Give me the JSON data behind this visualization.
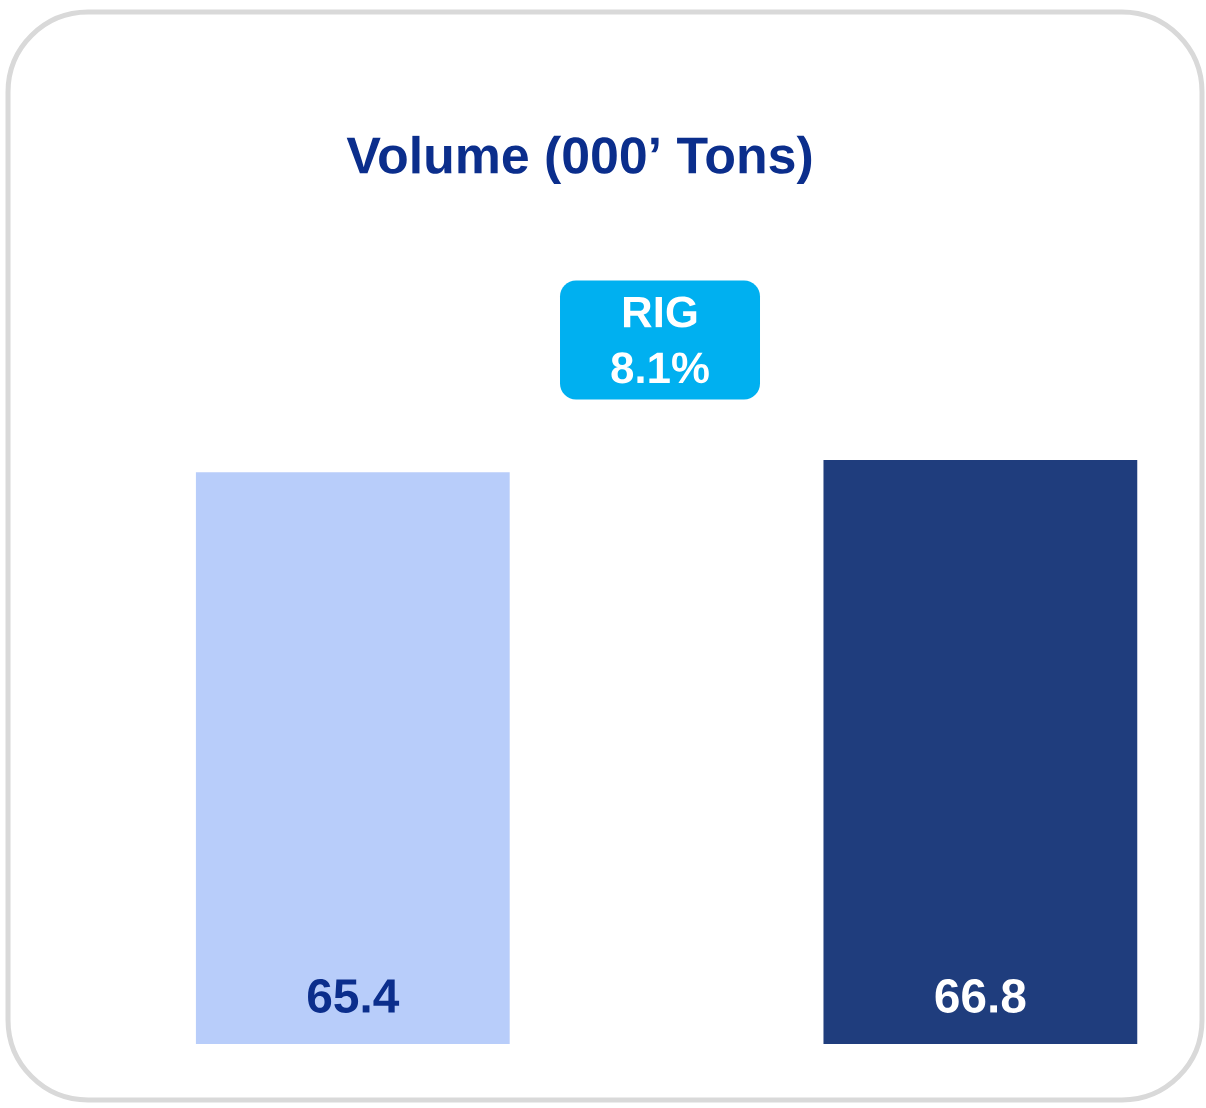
{
  "chart_data": {
    "type": "bar",
    "title": "Volume (000’ Tons)",
    "categories": [
      null,
      null
    ],
    "values": [
      65.4,
      66.8
    ],
    "colors": [
      "#b8cdfa",
      "#1f3d7d"
    ],
    "data_labels": true,
    "annotations": [
      "RIG\n8.1%"
    ]
  }
}
